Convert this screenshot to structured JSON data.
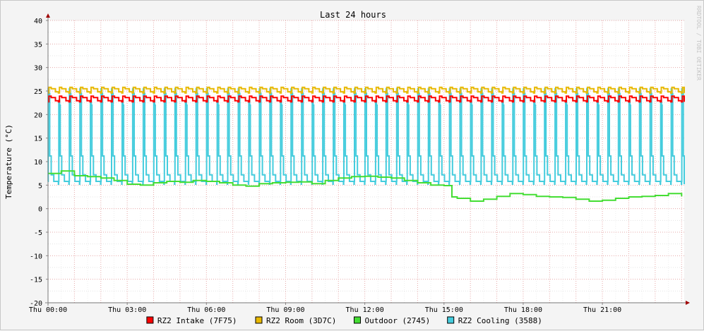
{
  "chart_data": {
    "type": "line",
    "title": "Last 24 hours",
    "ylabel": "Temperature (°C)",
    "xlabel": "",
    "watermark": "RRDTOOL / TOBI OETIKER",
    "ylim": [
      -20,
      40
    ],
    "yticks": [
      -20,
      -15,
      -10,
      -5,
      0,
      5,
      10,
      15,
      20,
      25,
      30,
      35,
      40
    ],
    "xlim_hours": [
      0,
      24.1
    ],
    "xticks": [
      {
        "hour": 0,
        "label": "Thu 00:00"
      },
      {
        "hour": 3,
        "label": "Thu 03:00"
      },
      {
        "hour": 6,
        "label": "Thu 06:00"
      },
      {
        "hour": 9,
        "label": "Thu 09:00"
      },
      {
        "hour": 12,
        "label": "Thu 12:00"
      },
      {
        "hour": 15,
        "label": "Thu 15:00"
      },
      {
        "hour": 18,
        "label": "Thu 18:00"
      },
      {
        "hour": 21,
        "label": "Thu 21:00"
      }
    ],
    "grid": true,
    "legend_position": "bottom",
    "series": [
      {
        "name": "RZ2 Intake (7F75)",
        "color": "#ff0000",
        "pattern": "sawtooth",
        "low": 22.7,
        "high": 23.9,
        "period_h": 0.4,
        "start_h": 0,
        "end_h": 24.0
      },
      {
        "name": "RZ2 Room (3D7C)",
        "color": "#e8b800",
        "pattern": "sawtooth",
        "low": 24.6,
        "high": 25.8,
        "period_h": 0.4,
        "start_h": 0,
        "end_h": 24.0
      },
      {
        "name": "Outdoor (2745)",
        "color": "#44dd33",
        "pattern": "points",
        "x": [
          0,
          0.5,
          1.0,
          1.5,
          2.0,
          2.5,
          3.0,
          3.5,
          4.0,
          4.5,
          5.0,
          5.5,
          6.0,
          6.5,
          7.0,
          7.5,
          8.0,
          8.5,
          9.0,
          9.5,
          10.0,
          10.5,
          11.0,
          11.5,
          12.0,
          12.5,
          13.0,
          13.5,
          14.0,
          14.5,
          15.0,
          15.3,
          15.5,
          16.0,
          16.5,
          17.0,
          17.5,
          18.0,
          18.5,
          19.0,
          19.5,
          20.0,
          20.5,
          21.0,
          21.5,
          22.0,
          22.5,
          23.0,
          23.5,
          24.0
        ],
        "y": [
          7.5,
          8.0,
          7.0,
          6.8,
          6.5,
          6.0,
          5.2,
          5.0,
          5.5,
          5.8,
          5.6,
          6.0,
          5.8,
          5.5,
          5.0,
          4.8,
          5.3,
          5.5,
          5.6,
          5.7,
          5.3,
          6.0,
          6.5,
          6.8,
          6.9,
          6.7,
          6.5,
          6.0,
          5.5,
          5.0,
          4.9,
          2.5,
          2.2,
          1.6,
          2.0,
          2.6,
          3.2,
          3.0,
          2.6,
          2.5,
          2.4,
          2.0,
          1.6,
          1.8,
          2.2,
          2.5,
          2.6,
          2.8,
          3.2,
          2.6
        ]
      },
      {
        "name": "RZ2 Cooling (3588)",
        "color": "#44ccdd",
        "pattern": "spikes",
        "base": 5.2,
        "peak": 25.5,
        "period_h": 0.4,
        "start_h": 0,
        "end_h": 24.0
      }
    ]
  }
}
